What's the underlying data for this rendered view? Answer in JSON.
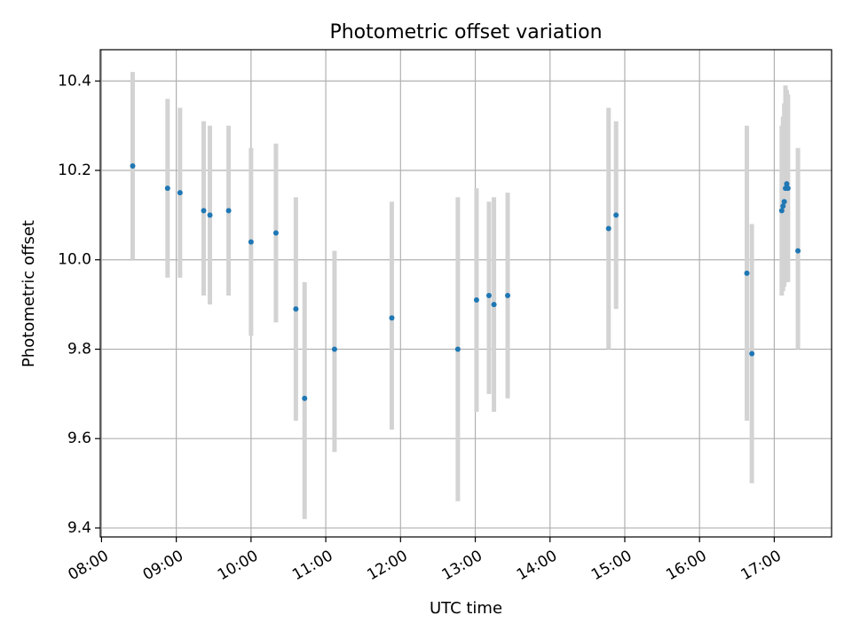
{
  "chart_data": {
    "type": "scatter",
    "title": "Photometric offset variation",
    "xlabel": "UTC time",
    "ylabel": "Photometric offset",
    "x_ticks": [
      "08:00",
      "09:00",
      "10:00",
      "11:00",
      "12:00",
      "13:00",
      "14:00",
      "15:00",
      "16:00",
      "17:00"
    ],
    "y_ticks": [
      "9.4",
      "9.6",
      "9.8",
      "10.0",
      "10.2",
      "10.4"
    ],
    "xlim": [
      "07:59",
      "17:46"
    ],
    "ylim": [
      9.38,
      10.47
    ],
    "grid": true,
    "legend": "none",
    "colors": {
      "points": "#1f77b4",
      "errorbars": "#d3d3d3"
    },
    "points": [
      {
        "t": "08:25",
        "y": 10.21,
        "low": 10.0,
        "high": 10.42
      },
      {
        "t": "08:53",
        "y": 10.16,
        "low": 9.96,
        "high": 10.36
      },
      {
        "t": "09:03",
        "y": 10.15,
        "low": 9.96,
        "high": 10.34
      },
      {
        "t": "09:22",
        "y": 10.11,
        "low": 9.92,
        "high": 10.31
      },
      {
        "t": "09:27",
        "y": 10.1,
        "low": 9.9,
        "high": 10.3
      },
      {
        "t": "09:42",
        "y": 10.11,
        "low": 9.92,
        "high": 10.3
      },
      {
        "t": "10:00",
        "y": 10.04,
        "low": 9.83,
        "high": 10.25
      },
      {
        "t": "10:20",
        "y": 10.06,
        "low": 9.86,
        "high": 10.26
      },
      {
        "t": "10:36",
        "y": 9.89,
        "low": 9.64,
        "high": 10.14
      },
      {
        "t": "10:43",
        "y": 9.69,
        "low": 9.42,
        "high": 9.95
      },
      {
        "t": "11:07",
        "y": 9.8,
        "low": 9.57,
        "high": 10.02
      },
      {
        "t": "11:53",
        "y": 9.87,
        "low": 9.62,
        "high": 10.13
      },
      {
        "t": "12:46",
        "y": 9.8,
        "low": 9.46,
        "high": 10.14
      },
      {
        "t": "13:01",
        "y": 9.91,
        "low": 9.66,
        "high": 10.16
      },
      {
        "t": "13:11",
        "y": 9.92,
        "low": 9.7,
        "high": 10.13
      },
      {
        "t": "13:15",
        "y": 9.9,
        "low": 9.66,
        "high": 10.14
      },
      {
        "t": "13:26",
        "y": 9.92,
        "low": 9.69,
        "high": 10.15
      },
      {
        "t": "14:47",
        "y": 10.07,
        "low": 9.8,
        "high": 10.34
      },
      {
        "t": "14:53",
        "y": 10.1,
        "low": 9.89,
        "high": 10.31
      },
      {
        "t": "16:38",
        "y": 9.97,
        "low": 9.64,
        "high": 10.3
      },
      {
        "t": "16:42",
        "y": 9.79,
        "low": 9.5,
        "high": 10.08
      },
      {
        "t": "17:06",
        "y": 10.11,
        "low": 9.92,
        "high": 10.3
      },
      {
        "t": "17:07",
        "y": 10.12,
        "low": 9.93,
        "high": 10.32
      },
      {
        "t": "17:08",
        "y": 10.13,
        "low": 9.94,
        "high": 10.35
      },
      {
        "t": "17:09",
        "y": 10.16,
        "low": 9.95,
        "high": 10.39
      },
      {
        "t": "17:10",
        "y": 10.17,
        "low": 9.96,
        "high": 10.38
      },
      {
        "t": "17:11",
        "y": 10.16,
        "low": 9.95,
        "high": 10.37
      },
      {
        "t": "17:19",
        "y": 10.02,
        "low": 9.8,
        "high": 10.25
      }
    ]
  }
}
